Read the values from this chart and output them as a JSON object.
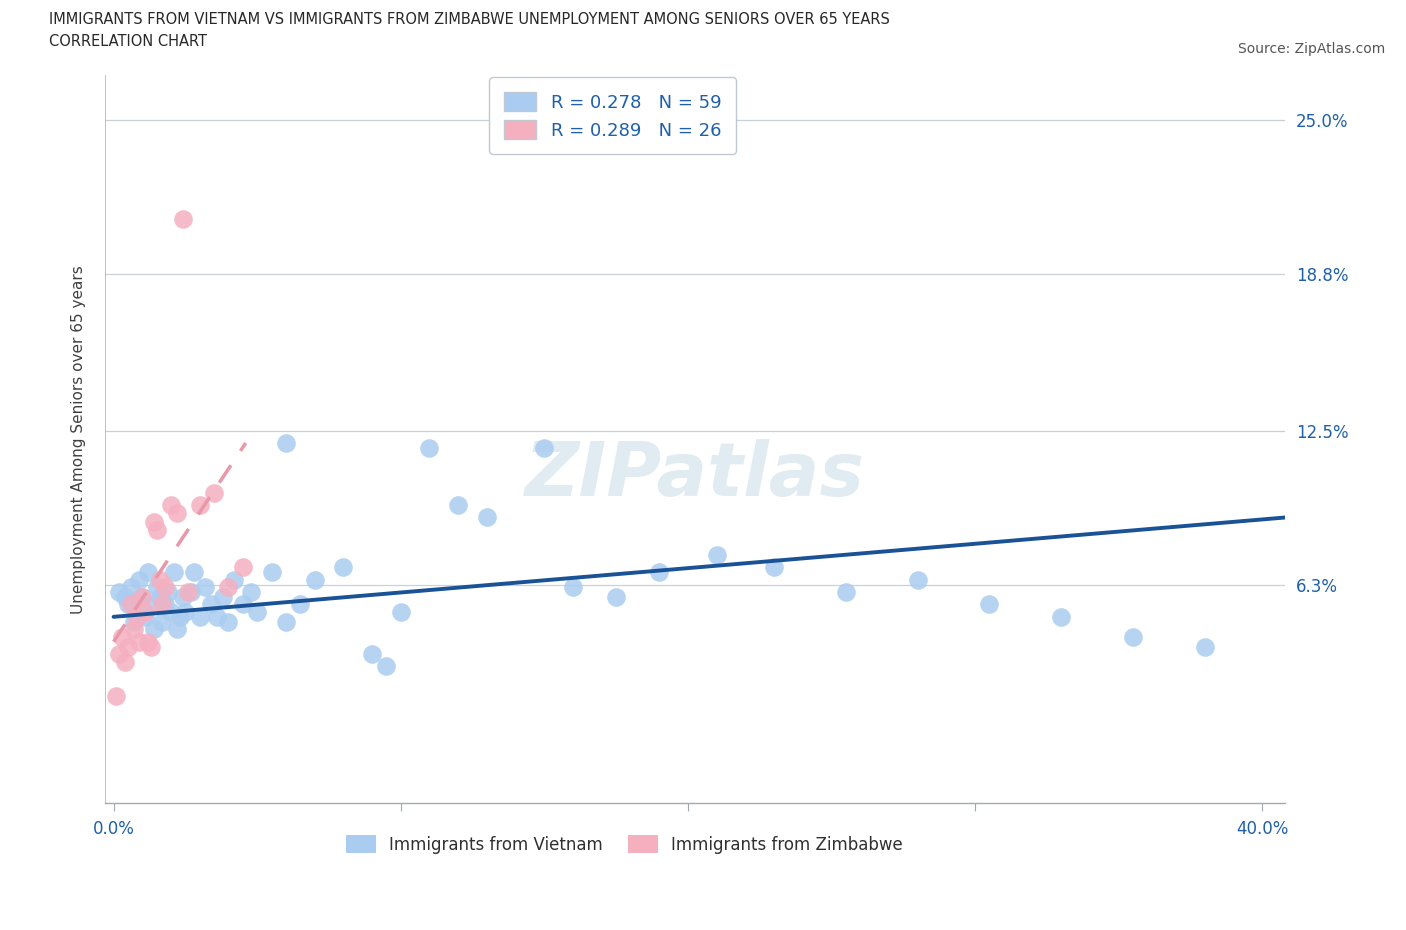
{
  "title_line1": "IMMIGRANTS FROM VIETNAM VS IMMIGRANTS FROM ZIMBABWE UNEMPLOYMENT AMONG SENIORS OVER 65 YEARS",
  "title_line2": "CORRELATION CHART",
  "source": "Source: ZipAtlas.com",
  "ylabel": "Unemployment Among Seniors over 65 years",
  "xlim": [
    -0.003,
    0.408
  ],
  "ylim": [
    -0.025,
    0.268
  ],
  "ytick_vals": [
    0.0,
    0.063,
    0.125,
    0.188,
    0.25
  ],
  "ytick_labels": [
    "",
    "6.3%",
    "12.5%",
    "18.8%",
    "25.0%"
  ],
  "xtick_vals": [
    0.0,
    0.1,
    0.2,
    0.3,
    0.4
  ],
  "xtick_labels": [
    "0.0%",
    "",
    "",
    "",
    "40.0%"
  ],
  "vietnam_R": 0.278,
  "vietnam_N": 59,
  "zimbabwe_R": 0.289,
  "zimbabwe_N": 26,
  "vietnam_dot_color": "#aaccf0",
  "zimbabwe_dot_color": "#f5b0c0",
  "vietnam_line_color": "#1a5296",
  "zimbabwe_line_color": "#e898a8",
  "watermark_color": "#c8dce8",
  "vietnam_x": [
    0.002,
    0.004,
    0.005,
    0.006,
    0.007,
    0.008,
    0.009,
    0.01,
    0.011,
    0.012,
    0.013,
    0.014,
    0.015,
    0.016,
    0.017,
    0.018,
    0.019,
    0.02,
    0.021,
    0.022,
    0.023,
    0.024,
    0.025,
    0.027,
    0.028,
    0.03,
    0.032,
    0.034,
    0.036,
    0.038,
    0.04,
    0.042,
    0.045,
    0.048,
    0.05,
    0.055,
    0.06,
    0.065,
    0.07,
    0.08,
    0.09,
    0.1,
    0.11,
    0.12,
    0.13,
    0.15,
    0.16,
    0.175,
    0.19,
    0.21,
    0.23,
    0.255,
    0.28,
    0.305,
    0.33,
    0.355,
    0.38,
    0.06,
    0.095
  ],
  "vietnam_y": [
    0.06,
    0.058,
    0.055,
    0.062,
    0.048,
    0.052,
    0.065,
    0.058,
    0.05,
    0.068,
    0.055,
    0.045,
    0.062,
    0.058,
    0.048,
    0.055,
    0.06,
    0.052,
    0.068,
    0.045,
    0.05,
    0.058,
    0.052,
    0.06,
    0.068,
    0.05,
    0.062,
    0.055,
    0.05,
    0.058,
    0.048,
    0.065,
    0.055,
    0.06,
    0.052,
    0.068,
    0.048,
    0.055,
    0.065,
    0.07,
    0.035,
    0.052,
    0.118,
    0.095,
    0.09,
    0.118,
    0.062,
    0.058,
    0.068,
    0.075,
    0.07,
    0.06,
    0.065,
    0.055,
    0.05,
    0.042,
    0.038,
    0.12,
    0.03
  ],
  "zimbabwe_x": [
    0.001,
    0.002,
    0.003,
    0.004,
    0.005,
    0.006,
    0.007,
    0.008,
    0.009,
    0.01,
    0.011,
    0.012,
    0.013,
    0.014,
    0.015,
    0.016,
    0.017,
    0.018,
    0.02,
    0.022,
    0.024,
    0.026,
    0.03,
    0.035,
    0.04,
    0.045
  ],
  "zimbabwe_y": [
    0.018,
    0.035,
    0.042,
    0.032,
    0.038,
    0.055,
    0.045,
    0.05,
    0.04,
    0.058,
    0.052,
    0.04,
    0.038,
    0.088,
    0.085,
    0.065,
    0.055,
    0.062,
    0.095,
    0.092,
    0.21,
    0.06,
    0.095,
    0.1,
    0.062,
    0.07
  ],
  "vietnam_trend_x0": 0.0,
  "vietnam_trend_x1": 0.408,
  "vietnam_trend_y0": 0.05,
  "vietnam_trend_y1": 0.09,
  "zimbabwe_trend_x0": 0.0,
  "zimbabwe_trend_x1": 0.046,
  "zimbabwe_trend_y0": 0.04,
  "zimbabwe_trend_y1": 0.12
}
